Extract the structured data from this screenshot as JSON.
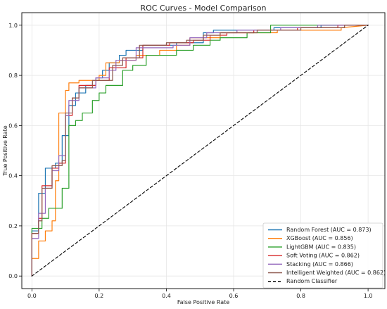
{
  "chart_data": {
    "type": "line",
    "title": "ROC Curves - Model Comparison",
    "xlabel": "False Positive Rate",
    "ylabel": "True Positive Rate",
    "xlim": [
      -0.03,
      1.05
    ],
    "ylim": [
      -0.05,
      1.05
    ],
    "xticks": [
      "0.0",
      "0.2",
      "0.4",
      "0.6",
      "0.8",
      "1.0"
    ],
    "yticks": [
      "0.0",
      "0.2",
      "0.4",
      "0.6",
      "0.8",
      "1.0"
    ],
    "grid": true,
    "legend_position": "lower-right",
    "series": [
      {
        "name": "Random Forest (AUC = 0.873)",
        "color": "#1f77b4",
        "x": [
          0,
          0,
          0.02,
          0.02,
          0.04,
          0.04,
          0.07,
          0.07,
          0.09,
          0.09,
          0.11,
          0.11,
          0.13,
          0.13,
          0.16,
          0.16,
          0.19,
          0.19,
          0.21,
          0.21,
          0.23,
          0.23,
          0.26,
          0.26,
          0.28,
          0.28,
          0.33,
          0.33,
          0.43,
          0.43,
          0.51,
          0.51,
          0.54,
          0.54,
          0.72,
          0.72,
          0.86,
          0.86,
          1
        ],
        "y": [
          0,
          0.18,
          0.18,
          0.33,
          0.33,
          0.43,
          0.43,
          0.45,
          0.45,
          0.56,
          0.56,
          0.68,
          0.68,
          0.73,
          0.73,
          0.76,
          0.76,
          0.79,
          0.79,
          0.82,
          0.82,
          0.85,
          0.85,
          0.88,
          0.88,
          0.9,
          0.9,
          0.92,
          0.92,
          0.93,
          0.93,
          0.97,
          0.97,
          0.98,
          0.98,
          0.99,
          0.99,
          1,
          1
        ]
      },
      {
        "name": "XGBoost (AUC = 0.856)",
        "color": "#ff7f0e",
        "x": [
          0,
          0,
          0.02,
          0.02,
          0.04,
          0.04,
          0.06,
          0.06,
          0.07,
          0.07,
          0.08,
          0.08,
          0.1,
          0.1,
          0.11,
          0.11,
          0.14,
          0.14,
          0.2,
          0.2,
          0.22,
          0.22,
          0.26,
          0.26,
          0.31,
          0.31,
          0.38,
          0.38,
          0.43,
          0.43,
          0.47,
          0.47,
          0.56,
          0.56,
          0.73,
          0.73,
          0.92,
          0.92,
          1
        ],
        "y": [
          0,
          0.07,
          0.07,
          0.14,
          0.14,
          0.18,
          0.18,
          0.22,
          0.22,
          0.38,
          0.38,
          0.65,
          0.65,
          0.74,
          0.74,
          0.77,
          0.77,
          0.78,
          0.78,
          0.8,
          0.8,
          0.85,
          0.85,
          0.86,
          0.86,
          0.88,
          0.88,
          0.9,
          0.9,
          0.92,
          0.92,
          0.95,
          0.95,
          0.97,
          0.97,
          0.98,
          0.98,
          0.99,
          1
        ]
      },
      {
        "name": "LightGBM (AUC = 0.835)",
        "color": "#2ca02c",
        "x": [
          0,
          0,
          0.03,
          0.03,
          0.05,
          0.05,
          0.09,
          0.09,
          0.11,
          0.11,
          0.13,
          0.13,
          0.15,
          0.15,
          0.18,
          0.18,
          0.2,
          0.2,
          0.22,
          0.22,
          0.27,
          0.27,
          0.3,
          0.3,
          0.34,
          0.34,
          0.43,
          0.43,
          0.48,
          0.48,
          0.53,
          0.53,
          0.56,
          0.56,
          0.64,
          0.64,
          0.71,
          0.71,
          1
        ],
        "y": [
          0,
          0.19,
          0.19,
          0.23,
          0.23,
          0.27,
          0.27,
          0.35,
          0.35,
          0.6,
          0.6,
          0.62,
          0.62,
          0.65,
          0.65,
          0.7,
          0.7,
          0.73,
          0.73,
          0.76,
          0.76,
          0.82,
          0.82,
          0.84,
          0.84,
          0.88,
          0.88,
          0.9,
          0.9,
          0.92,
          0.92,
          0.94,
          0.94,
          0.95,
          0.95,
          0.97,
          0.97,
          1,
          1
        ]
      },
      {
        "name": "Soft Voting (AUC = 0.862)",
        "color": "#d62728",
        "x": [
          0,
          0,
          0.02,
          0.02,
          0.03,
          0.03,
          0.06,
          0.06,
          0.08,
          0.08,
          0.1,
          0.1,
          0.12,
          0.12,
          0.14,
          0.14,
          0.19,
          0.19,
          0.23,
          0.23,
          0.28,
          0.28,
          0.33,
          0.33,
          0.41,
          0.41,
          0.48,
          0.48,
          0.53,
          0.53,
          0.58,
          0.58,
          0.66,
          0.66,
          0.79,
          0.79,
          0.91,
          0.91,
          1
        ],
        "y": [
          0,
          0.17,
          0.17,
          0.23,
          0.23,
          0.36,
          0.36,
          0.43,
          0.43,
          0.45,
          0.45,
          0.64,
          0.64,
          0.71,
          0.71,
          0.76,
          0.76,
          0.78,
          0.78,
          0.83,
          0.83,
          0.87,
          0.87,
          0.92,
          0.92,
          0.93,
          0.93,
          0.94,
          0.94,
          0.96,
          0.96,
          0.97,
          0.97,
          0.98,
          0.98,
          0.99,
          0.99,
          1,
          1
        ]
      },
      {
        "name": "Stacking (AUC = 0.866)",
        "color": "#9467bd",
        "x": [
          0,
          0,
          0.02,
          0.02,
          0.04,
          0.04,
          0.06,
          0.06,
          0.08,
          0.08,
          0.1,
          0.1,
          0.11,
          0.11,
          0.14,
          0.14,
          0.19,
          0.19,
          0.23,
          0.23,
          0.25,
          0.25,
          0.31,
          0.31,
          0.42,
          0.42,
          0.47,
          0.47,
          0.52,
          0.52,
          0.61,
          0.61,
          0.74,
          0.74,
          0.85,
          0.85,
          0.95,
          0.95,
          1
        ],
        "y": [
          0,
          0.15,
          0.15,
          0.25,
          0.25,
          0.35,
          0.35,
          0.42,
          0.42,
          0.48,
          0.48,
          0.64,
          0.64,
          0.7,
          0.7,
          0.75,
          0.75,
          0.79,
          0.79,
          0.82,
          0.82,
          0.86,
          0.86,
          0.91,
          0.91,
          0.92,
          0.92,
          0.95,
          0.95,
          0.97,
          0.97,
          0.98,
          0.98,
          0.99,
          0.99,
          1,
          1,
          1,
          1
        ]
      },
      {
        "name": "Intelligent Weighted (AUC = 0.862)",
        "color": "#8c564b",
        "x": [
          0,
          0,
          0.02,
          0.02,
          0.03,
          0.03,
          0.06,
          0.06,
          0.09,
          0.09,
          0.1,
          0.1,
          0.12,
          0.12,
          0.14,
          0.14,
          0.18,
          0.18,
          0.24,
          0.24,
          0.27,
          0.27,
          0.32,
          0.32,
          0.4,
          0.4,
          0.46,
          0.46,
          0.51,
          0.51,
          0.56,
          0.56,
          0.67,
          0.67,
          0.8,
          0.8,
          0.93,
          0.93,
          1
        ],
        "y": [
          0,
          0.17,
          0.17,
          0.22,
          0.22,
          0.35,
          0.35,
          0.44,
          0.44,
          0.46,
          0.46,
          0.65,
          0.65,
          0.71,
          0.71,
          0.75,
          0.75,
          0.78,
          0.78,
          0.84,
          0.84,
          0.87,
          0.87,
          0.92,
          0.92,
          0.93,
          0.93,
          0.94,
          0.94,
          0.96,
          0.96,
          0.97,
          0.97,
          0.98,
          0.98,
          0.99,
          0.99,
          1,
          1
        ]
      },
      {
        "name": "Random Classifier",
        "color": "#000000",
        "dashed": true,
        "x": [
          0,
          1
        ],
        "y": [
          0,
          1
        ]
      }
    ]
  }
}
